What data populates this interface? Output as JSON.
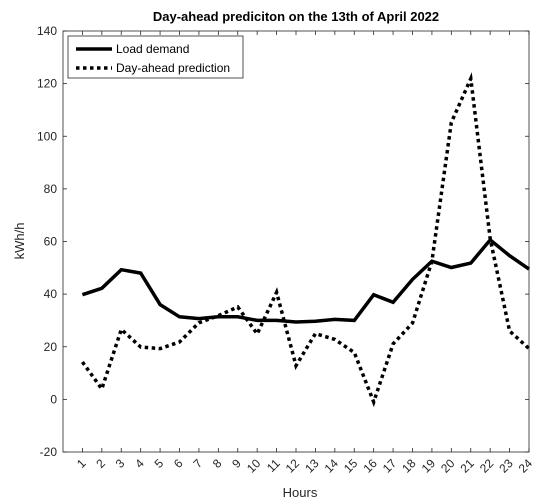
{
  "chart_data": {
    "type": "line",
    "title": "Day-ahead prediciton on the 13th of April 2022",
    "xlabel": "Hours",
    "ylabel": "kWh/h",
    "x": [
      1,
      2,
      3,
      4,
      5,
      6,
      7,
      8,
      9,
      10,
      11,
      12,
      13,
      14,
      15,
      16,
      17,
      18,
      19,
      20,
      21,
      22,
      23,
      24
    ],
    "xlim": [
      0,
      24
    ],
    "ylim": [
      -20,
      140
    ],
    "yticks": [
      -20,
      0,
      20,
      40,
      60,
      80,
      100,
      120,
      140
    ],
    "xticks": [
      "1",
      "2",
      "3",
      "4",
      "5",
      "6",
      "7",
      "8",
      "9",
      "10",
      "11",
      "12",
      "13",
      "14",
      "15",
      "16",
      "17",
      "18",
      "19",
      "20",
      "21",
      "22",
      "23",
      "24"
    ],
    "legend": "top-left",
    "grid": false,
    "series": [
      {
        "name": "Load demand",
        "style": "solid",
        "color": "#000000",
        "values": [
          39.8,
          42.2,
          49.3,
          48.0,
          36.0,
          31.4,
          30.7,
          31.4,
          31.4,
          30.0,
          30.0,
          29.4,
          29.7,
          30.4,
          30.0,
          39.8,
          36.9,
          45.6,
          52.5,
          50.1,
          51.8,
          60.6,
          54.6,
          49.5
        ]
      },
      {
        "name": "Day-ahead prediction",
        "style": "dotted",
        "color": "#000000",
        "values": [
          14.2,
          4.0,
          26.6,
          19.9,
          19.3,
          21.8,
          29.1,
          31.8,
          35.1,
          24.9,
          40.7,
          12.8,
          25.0,
          22.8,
          17.8,
          -1.0,
          21.1,
          29.0,
          52.5,
          105.2,
          121.9,
          61.0,
          26.0,
          19.3
        ]
      }
    ]
  }
}
